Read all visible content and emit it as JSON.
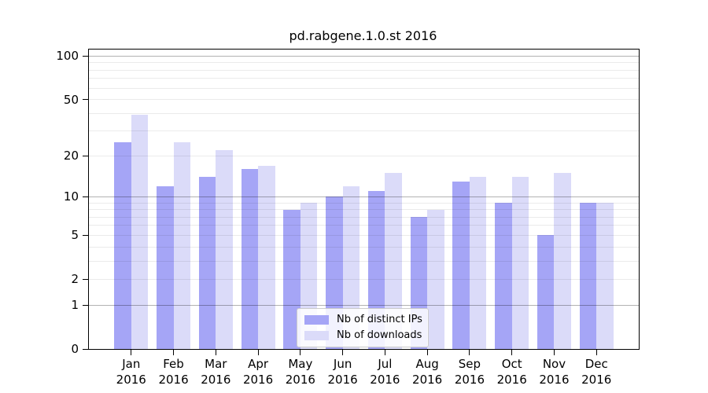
{
  "chart_data": {
    "type": "bar",
    "title": "pd.rabgene.1.0.st 2016",
    "categories": [
      "Jan",
      "Feb",
      "Mar",
      "Apr",
      "May",
      "Jun",
      "Jul",
      "Aug",
      "Sep",
      "Oct",
      "Nov",
      "Dec"
    ],
    "category_year_line": "2016",
    "series": [
      {
        "name": "Nb of distinct IPs",
        "color": "#a5a5f6",
        "values": [
          25,
          12,
          14,
          16,
          8,
          10,
          11,
          7,
          13,
          9,
          5,
          9
        ]
      },
      {
        "name": "Nb of downloads",
        "color": "#dbdbf9",
        "values": [
          39,
          25,
          22,
          17,
          9,
          12,
          15,
          8,
          14,
          14,
          15,
          9
        ]
      }
    ],
    "yscale": "log1p",
    "ylim": [
      0,
      111
    ],
    "yticks": [
      100,
      50,
      20,
      10,
      5,
      2,
      1,
      0
    ],
    "grid_major_values": [
      1,
      10,
      100
    ],
    "grid_minor_values": [
      2,
      3,
      4,
      5,
      6,
      7,
      8,
      9,
      20,
      30,
      40,
      50,
      60,
      70,
      80,
      90
    ],
    "legend_position": "lower center",
    "xlabel": "",
    "ylabel": ""
  },
  "style": {
    "grid_minor_color": "rgba(0,0,0,0.08)",
    "grid_major_color": "rgba(0,0,0,0.30)",
    "spine_color": "#000000",
    "text_color": "#000000",
    "legend_border": "#cccccc",
    "legend_bg": "rgba(255,255,255,0.85)"
  }
}
